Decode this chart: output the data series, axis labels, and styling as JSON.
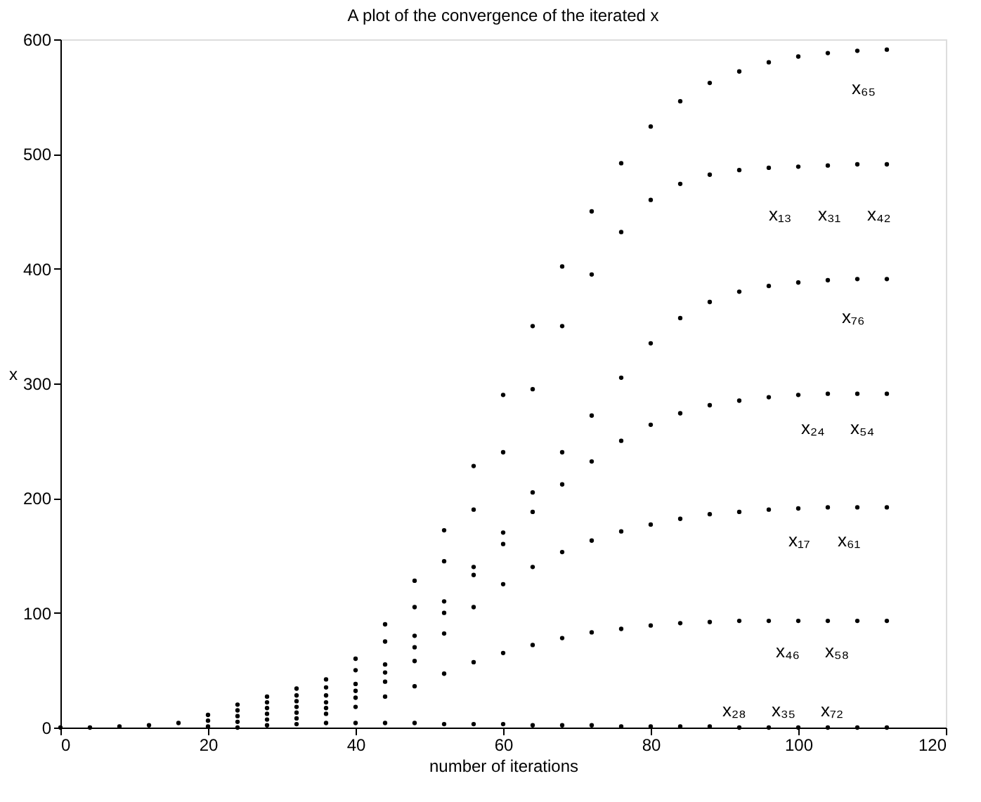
{
  "chart_data": {
    "type": "scatter",
    "title": "A plot of the convergence of the iterated x",
    "xlabel": "number of iterations",
    "ylabel": "x",
    "x": [
      0,
      4,
      8,
      12,
      16,
      20,
      24,
      28,
      32,
      36,
      40,
      44,
      48,
      52,
      56,
      60,
      64,
      68,
      72,
      76,
      80,
      84,
      88,
      92,
      96,
      100,
      104,
      108,
      112
    ],
    "series": [
      {
        "color": "#000000",
        "values": [
          0,
          0,
          1,
          2,
          4,
          11,
          20,
          27,
          34,
          42,
          60,
          90,
          128,
          172,
          228,
          290,
          350,
          402,
          450,
          492,
          524,
          546,
          562,
          572,
          580,
          585,
          588,
          590,
          591
        ]
      },
      {
        "color": "#000000",
        "values": [
          null,
          null,
          null,
          null,
          null,
          6,
          15,
          22,
          28,
          35,
          50,
          75,
          105,
          145,
          190,
          240,
          295,
          350,
          395,
          432,
          460,
          474,
          482,
          486,
          488,
          489,
          490,
          491,
          491
        ]
      },
      {
        "color": "#000000",
        "values": [
          null,
          null,
          null,
          null,
          null,
          1,
          10,
          17,
          23,
          28,
          38,
          55,
          80,
          110,
          140,
          170,
          205,
          240,
          272,
          305,
          335,
          357,
          371,
          380,
          385,
          388,
          390,
          391,
          391
        ]
      },
      {
        "color": "#000000",
        "values": [
          null,
          null,
          null,
          null,
          null,
          null,
          5,
          12,
          18,
          22,
          32,
          48,
          70,
          100,
          133,
          160,
          188,
          212,
          232,
          250,
          264,
          274,
          281,
          285,
          288,
          290,
          291,
          291,
          291
        ]
      },
      {
        "color": "#000000",
        "values": [
          null,
          null,
          null,
          null,
          null,
          null,
          null,
          7,
          13,
          17,
          26,
          40,
          58,
          82,
          105,
          125,
          140,
          153,
          163,
          171,
          177,
          182,
          186,
          188,
          190,
          191,
          192,
          192,
          192
        ]
      },
      {
        "color": "#000000",
        "values": [
          null,
          null,
          null,
          null,
          null,
          null,
          null,
          null,
          8,
          12,
          18,
          27,
          36,
          47,
          57,
          65,
          72,
          78,
          83,
          86,
          89,
          91,
          92,
          93,
          93,
          93,
          93,
          93,
          93
        ]
      },
      {
        "color": "#000000",
        "values": [
          null,
          null,
          null,
          null,
          null,
          null,
          0,
          2,
          3,
          4,
          4,
          4,
          4,
          3,
          3,
          3,
          2,
          2,
          2,
          1,
          1,
          1,
          1,
          0,
          0,
          0,
          0,
          0,
          0
        ]
      }
    ],
    "xlim": [
      0,
      120
    ],
    "xticks": [
      0,
      20,
      40,
      60,
      80,
      100,
      120
    ],
    "ylim": [
      0,
      600
    ],
    "yticks": [
      0,
      100,
      200,
      300,
      400,
      500,
      600
    ],
    "grid": false,
    "legend": false,
    "marker": "circle",
    "annotations": [
      "x₆₅",
      "x₁₃",
      "x₃₁",
      "x₄₂",
      "x₇₆",
      "x₂₄",
      "x₅₄",
      "x₁₇",
      "x₆₁",
      "x₄₆",
      "x₅₈",
      "x₂₈",
      "x₃₅",
      "x₇₂"
    ]
  }
}
